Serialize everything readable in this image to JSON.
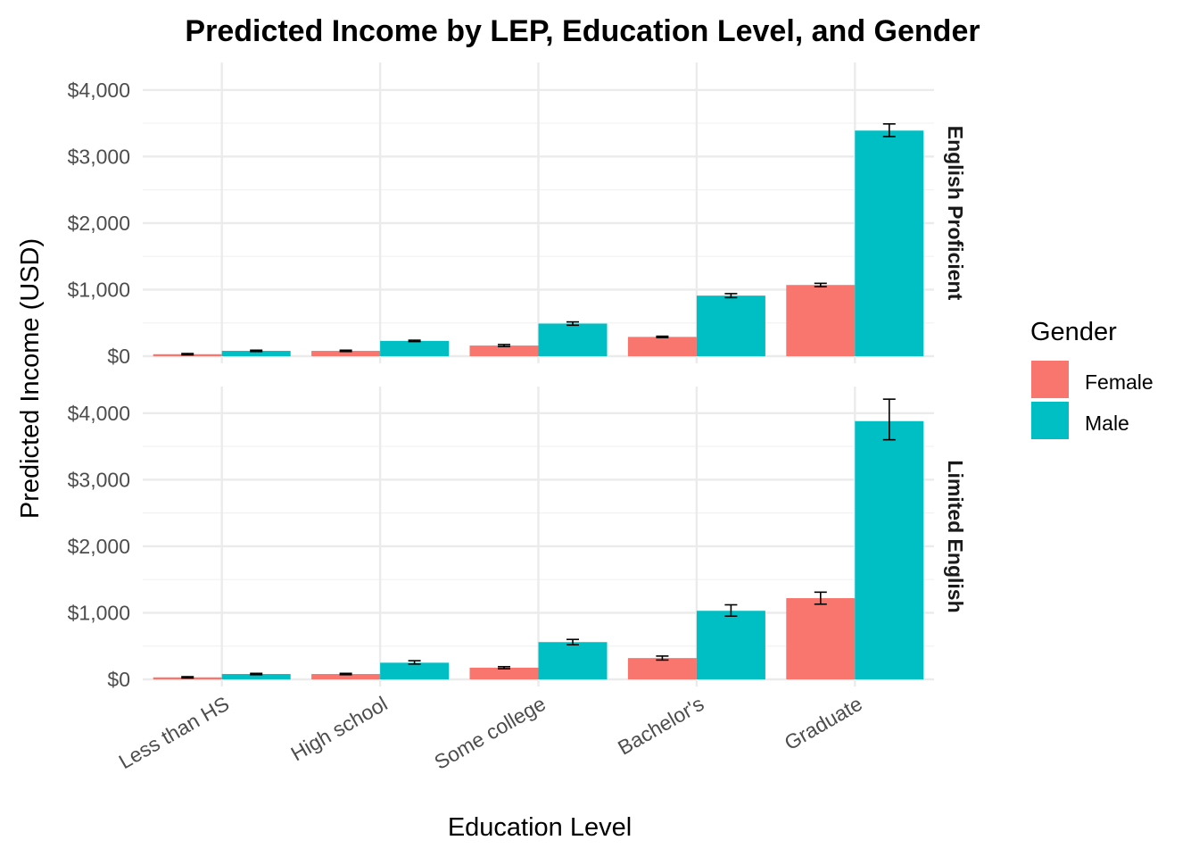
{
  "chart_data": {
    "type": "bar",
    "title": "Predicted Income by LEP, Education Level, and Gender",
    "xlabel": "Education Level",
    "ylabel": "Predicted Income (USD)",
    "categories": [
      "Less than HS",
      "High school",
      "Some college",
      "Bachelor's",
      "Graduate"
    ],
    "y_ticks": [
      0,
      1000,
      2000,
      3000,
      4000
    ],
    "y_tick_labels": [
      "$0",
      "$1,000",
      "$2,000",
      "$3,000",
      "$4,000"
    ],
    "ylim": [
      0,
      4350
    ],
    "grid": true,
    "legend": {
      "title": "Gender",
      "position": "right",
      "entries": [
        {
          "name": "Female",
          "color": "#F8766D"
        },
        {
          "name": "Male",
          "color": "#00BFC4"
        }
      ]
    },
    "panels": [
      {
        "label": "English Proficient",
        "series": [
          {
            "name": "Female",
            "values": [
              30,
              80,
              160,
              290,
              1070
            ],
            "error_low": [
              20,
              70,
              145,
              280,
              1045
            ],
            "error_high": [
              40,
              90,
              175,
              300,
              1095
            ]
          },
          {
            "name": "Male",
            "values": [
              80,
              230,
              490,
              910,
              3390
            ],
            "error_low": [
              70,
              220,
              465,
              880,
              3300
            ],
            "error_high": [
              90,
              240,
              515,
              940,
              3490
            ]
          }
        ]
      },
      {
        "label": "Limited English",
        "series": [
          {
            "name": "Female",
            "values": [
              30,
              80,
              175,
              320,
              1220
            ],
            "error_low": [
              20,
              70,
              160,
              290,
              1130
            ],
            "error_high": [
              40,
              90,
              190,
              350,
              1310
            ]
          },
          {
            "name": "Male",
            "values": [
              80,
              250,
              560,
              1030,
              3880
            ],
            "error_low": [
              70,
              230,
              520,
              950,
              3600
            ],
            "error_high": [
              90,
              280,
              600,
              1120,
              4210
            ]
          }
        ]
      }
    ]
  }
}
